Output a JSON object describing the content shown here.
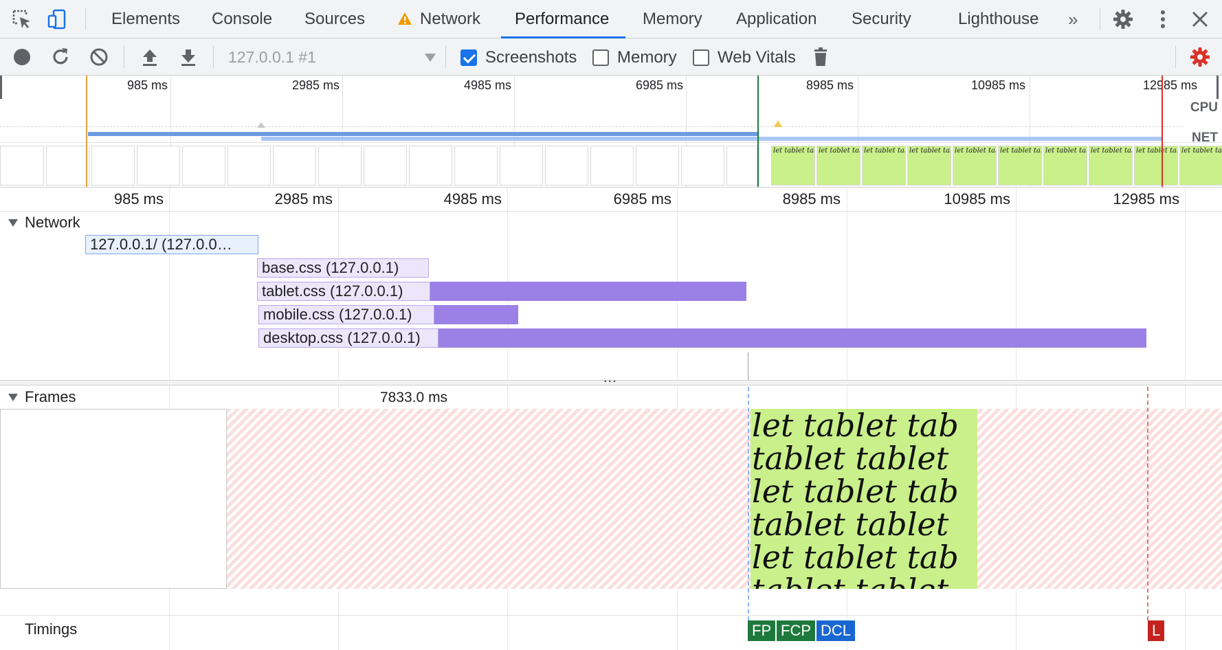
{
  "tabs": [
    "Elements",
    "Console",
    "Sources",
    "Network",
    "Performance",
    "Memory",
    "Application",
    "Security",
    "Lighthouse"
  ],
  "active_tab": "Performance",
  "network_warning": true,
  "more_tabs_glyph": "»",
  "icons": {
    "inspect": "inspect-element-icon",
    "device": "device-toolbar-icon",
    "settings": "gear-icon",
    "menu": "kebab-menu-icon",
    "close": "close-icon",
    "record": "record-icon",
    "reload": "reload-icon",
    "clear": "clear-icon",
    "upload": "load-profile-icon",
    "download": "save-profile-icon",
    "trash": "trash-icon",
    "capture_settings": "capture-settings-gear-icon"
  },
  "toolbar": {
    "target": "127.0.0.1 #1",
    "screenshots": {
      "label": "Screenshots",
      "checked": true
    },
    "memory": {
      "label": "Memory",
      "checked": false
    },
    "web_vitals": {
      "label": "Web Vitals",
      "checked": false
    }
  },
  "overview": {
    "ticks": [
      "985 ms",
      "2985 ms",
      "4985 ms",
      "6985 ms",
      "8985 ms",
      "10985 ms",
      "12985 ms"
    ],
    "cpu_label": "CPU",
    "net_label": "NET",
    "filmstrip_text": "let tablet tablet tablet let tablet tablet tablet let tablet"
  },
  "main": {
    "ticks": [
      "985 ms",
      "2985 ms",
      "4985 ms",
      "6985 ms",
      "8985 ms",
      "10985 ms",
      "12985 ms"
    ],
    "network_title": "Network",
    "requests": [
      {
        "label": "127.0.0.1/ (127.0.0…",
        "type": "document"
      },
      {
        "label": "base.css (127.0.0.1)",
        "type": "stylesheet"
      },
      {
        "label": "tablet.css (127.0.0.1)",
        "type": "stylesheet"
      },
      {
        "label": "mobile.css (127.0.0.1)",
        "type": "stylesheet"
      },
      {
        "label": "desktop.css (127.0.0.1)",
        "type": "stylesheet"
      }
    ],
    "resize_dots": "...",
    "frames_title": "Frames",
    "frame_duration": "7833.0 ms",
    "screenshot_lines": [
      "let tablet tab",
      "tablet tablet",
      "let tablet tab",
      "tablet tablet",
      "let tablet tab",
      "tablet tablet"
    ],
    "timings_title": "Timings",
    "markers": [
      {
        "label": "FP",
        "color": "#1e7a3c"
      },
      {
        "label": "FCP",
        "color": "#1e7a3c"
      },
      {
        "label": "DCL",
        "color": "#1967d2"
      },
      {
        "label": "L",
        "color": "#c5221f"
      }
    ]
  },
  "colors": {
    "accent": "#1a73e8",
    "stylesheet_bar": "#9b80e6",
    "screenshot_bg": "#c9f08a",
    "dropped_frame": "#fbdede",
    "record_red": "#d93025"
  }
}
